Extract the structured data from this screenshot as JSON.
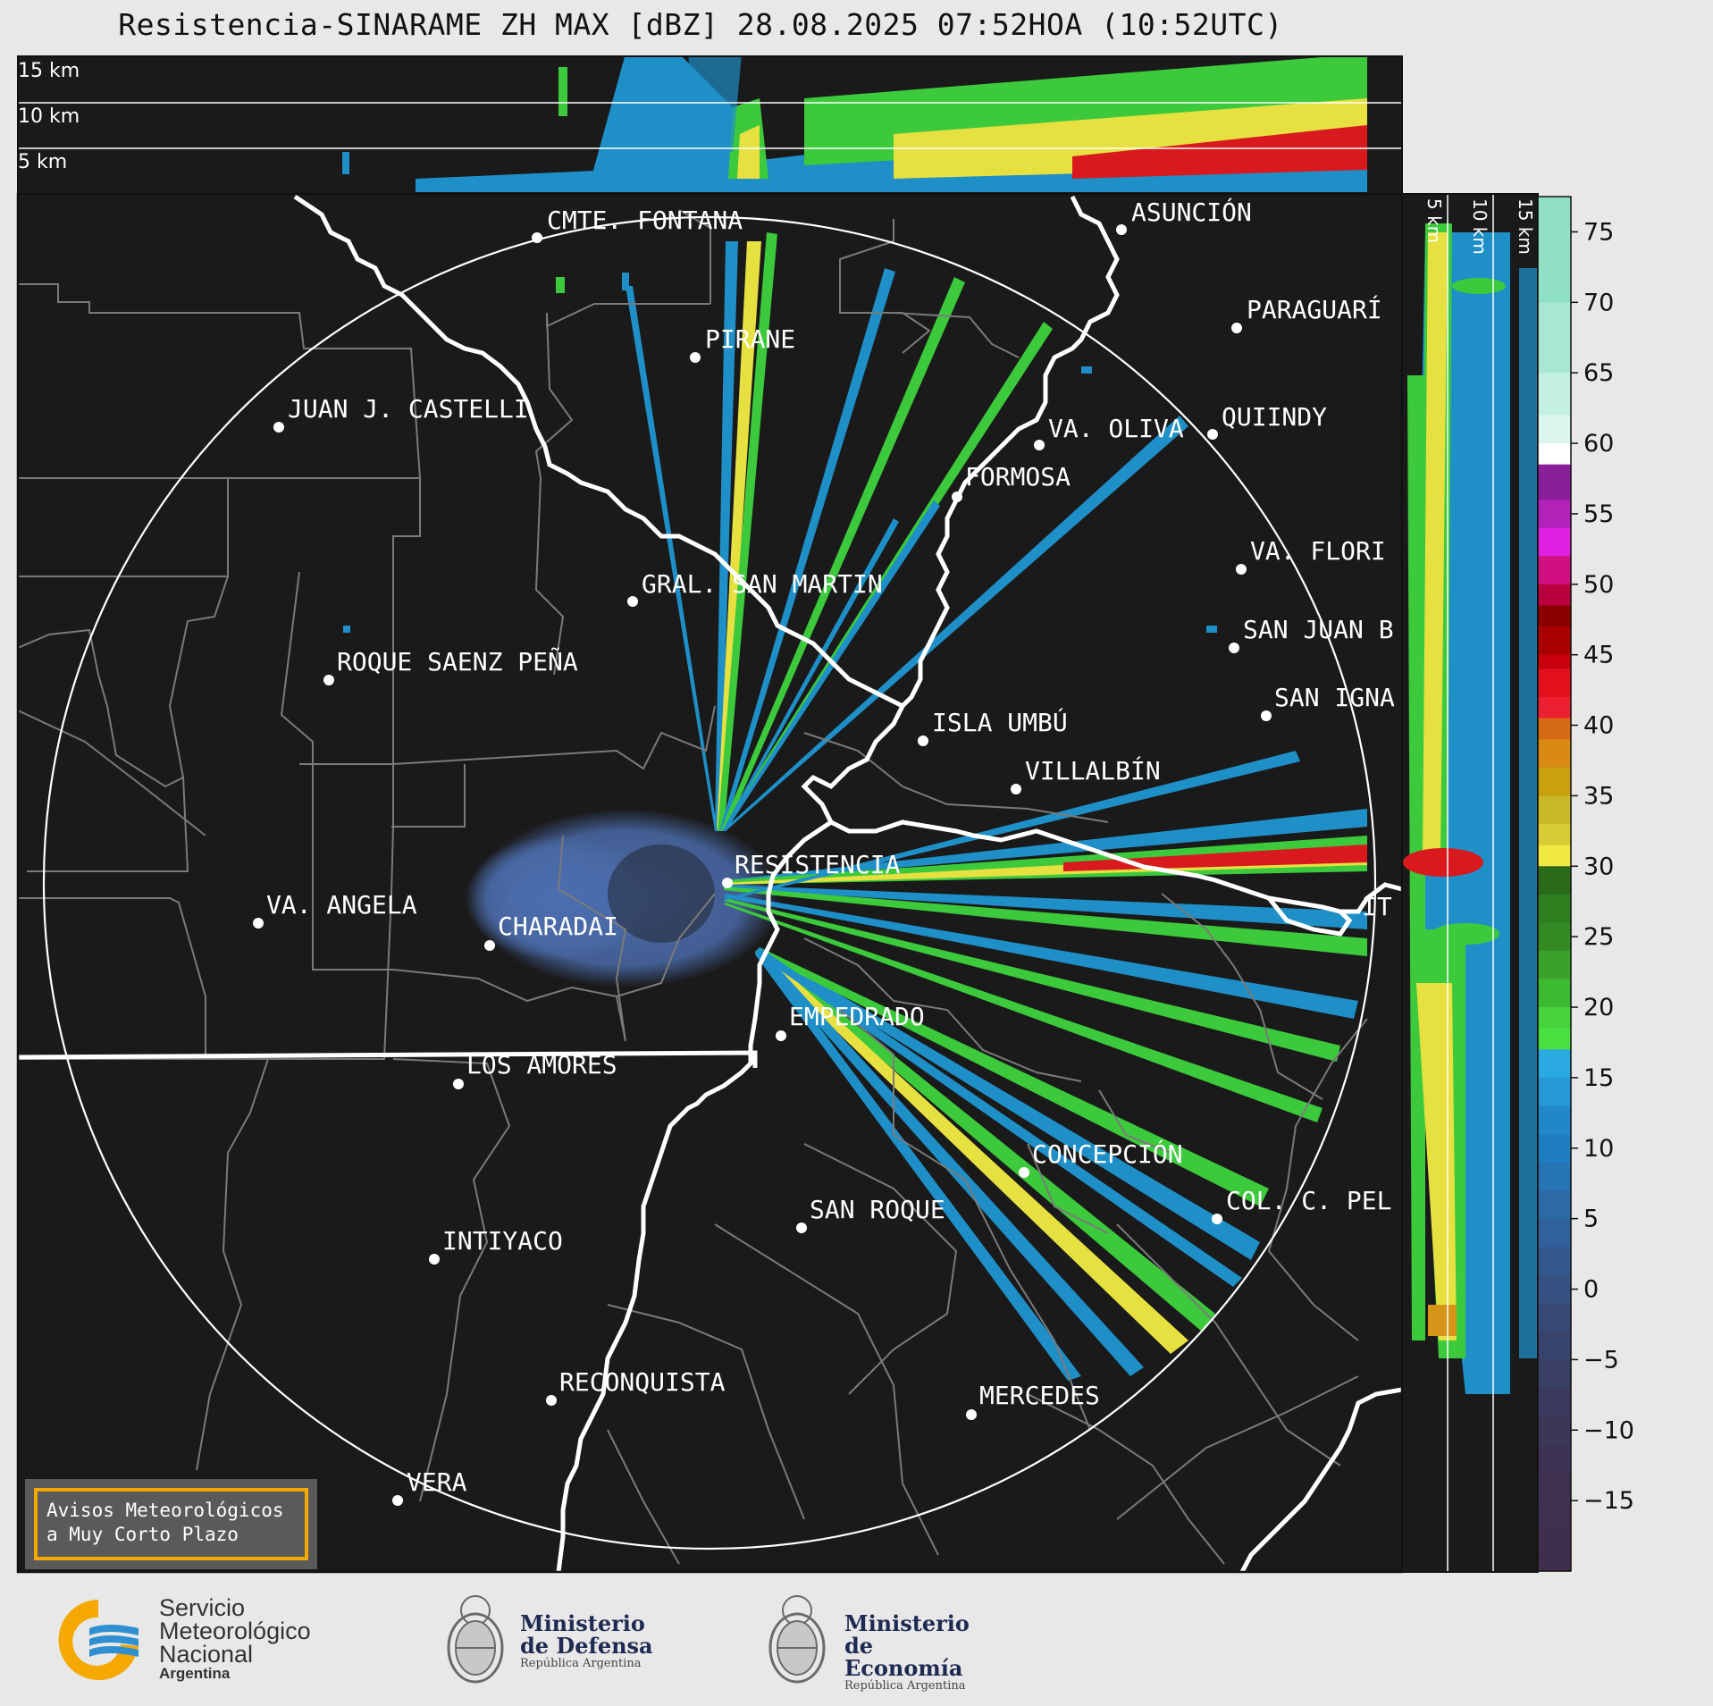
{
  "title": "Resistencia-SINARAME ZH MAX [dBZ] 28.08.2025 07:52HOA (10:52UTC)",
  "top_panel": {
    "labels": [
      "15 km",
      "10 km",
      "5 km"
    ]
  },
  "right_panel": {
    "labels": [
      "5 km",
      "10 km",
      "15 km"
    ]
  },
  "colorbar": {
    "ticks": [
      "75",
      "70",
      "65",
      "60",
      "55",
      "50",
      "45",
      "40",
      "35",
      "30",
      "25",
      "20",
      "15",
      "10",
      "5",
      "0",
      "−5",
      "−10",
      "−15"
    ],
    "unit": "dBZ"
  },
  "cities": [
    {
      "name": "CMTE. FONTANA"
    },
    {
      "name": "ASUNCIÓN"
    },
    {
      "name": "PIRANE"
    },
    {
      "name": "PARAGUARÍ"
    },
    {
      "name": "JUAN J. CASTELLI"
    },
    {
      "name": "VA. OLIVA"
    },
    {
      "name": "QUIINDY"
    },
    {
      "name": "FORMOSA"
    },
    {
      "name": "VA. FLORI"
    },
    {
      "name": "GRAL. SAN MARTIN"
    },
    {
      "name": "SAN JUAN B"
    },
    {
      "name": "ROQUE SAENZ PEÑA"
    },
    {
      "name": "SAN IGNA"
    },
    {
      "name": "ISLA UMBÚ"
    },
    {
      "name": "VILLALBÍN"
    },
    {
      "name": "RESISTENCIA"
    },
    {
      "name": "VA. ANGELA"
    },
    {
      "name": "CHARADAI"
    },
    {
      "name": "IT"
    },
    {
      "name": "EMPEDRADO"
    },
    {
      "name": "LOS AMORES"
    },
    {
      "name": "CONCEPCIÓN"
    },
    {
      "name": "COL. C. PEL"
    },
    {
      "name": "SAN ROQUE"
    },
    {
      "name": "INTIYACO"
    },
    {
      "name": "RECONQUISTA"
    },
    {
      "name": "MERCEDES"
    },
    {
      "name": "VERA"
    }
  ],
  "avisos": {
    "line1": "Avisos Meteorológicos",
    "line2": "a Muy Corto Plazo"
  },
  "logos": {
    "smn": {
      "line1": "Servicio",
      "line2": "Meteorológico",
      "line3": "Nacional",
      "line4": "Argentina"
    },
    "defensa": {
      "line1": "Ministerio",
      "line2": "de Defensa",
      "line3": "República Argentina"
    },
    "economia": {
      "line1": "Ministerio",
      "line2": "de Economía",
      "line3": "República Argentina"
    }
  },
  "colors": {
    "background": "#1a1a1a",
    "page": "#e8e8e8",
    "avisos_border": "#f5a800",
    "smn_yellow": "#f5a800",
    "smn_blue": "#2f8fd0"
  }
}
